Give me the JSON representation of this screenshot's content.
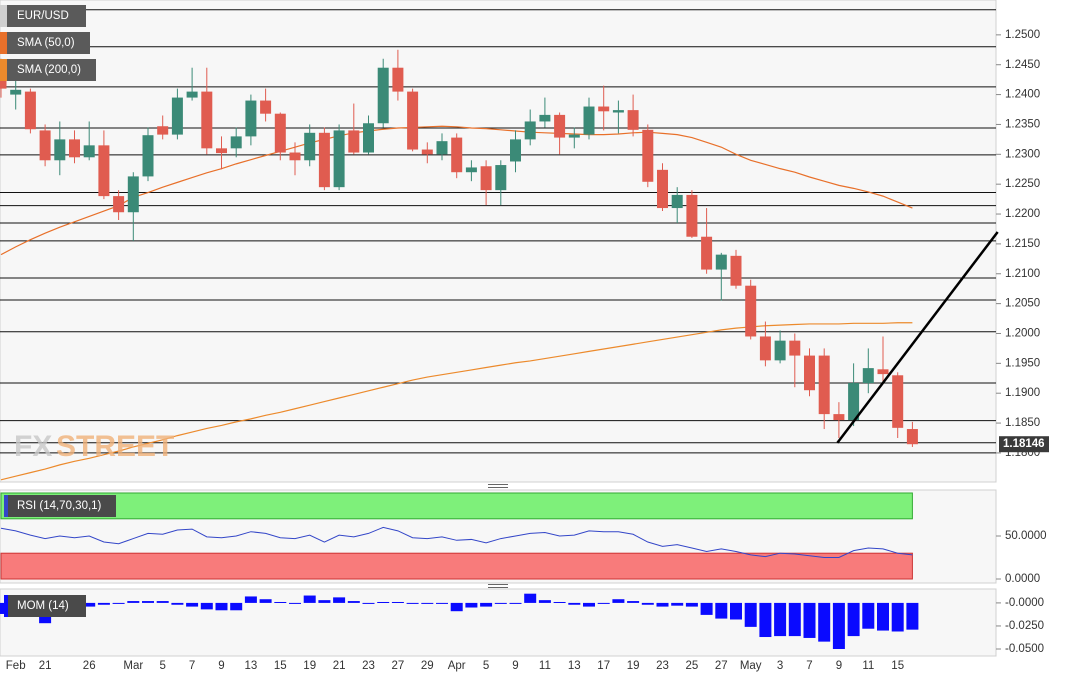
{
  "chart_data": [
    {
      "type": "candlestick",
      "name": "EUR/USD",
      "categories": [
        null,
        "Feb",
        null,
        "21",
        null,
        null,
        "26",
        null,
        null,
        "Mar",
        null,
        "5",
        null,
        "7",
        null,
        "9",
        null,
        "13",
        null,
        "15",
        null,
        "19",
        null,
        "21",
        null,
        "23",
        null,
        "27",
        null,
        "29",
        null,
        "Apr",
        null,
        "5",
        null,
        "9",
        null,
        "11",
        null,
        "13",
        null,
        "17",
        null,
        "19",
        null,
        "23",
        null,
        "25",
        null,
        "27",
        null,
        "May",
        null,
        "3",
        null,
        "7",
        null,
        "9",
        null,
        "11",
        null,
        "15",
        null
      ],
      "open": [
        1.244,
        1.24,
        1.2405,
        1.234,
        1.229,
        1.2325,
        1.2295,
        1.2315,
        1.223,
        1.2203,
        1.2263,
        1.2347,
        1.2333,
        1.2395,
        1.2405,
        1.231,
        1.231,
        1.233,
        1.239,
        1.2368,
        1.2303,
        1.229,
        1.2336,
        1.2245,
        1.234,
        1.2303,
        1.2352,
        1.2445,
        1.2405,
        1.2308,
        1.23,
        1.2328,
        1.227,
        1.228,
        1.224,
        1.2288,
        1.2325,
        1.2355,
        1.2366,
        1.2328,
        1.2333,
        1.238,
        1.237,
        1.2374,
        1.2341,
        1.2274,
        1.221,
        1.2232,
        1.2162,
        1.2107,
        1.213,
        1.208,
        1.1995,
        1.1955,
        1.1988,
        1.1963,
        1.1963,
        1.1865,
        1.1855,
        1.1917,
        1.194,
        1.193,
        1.184
      ],
      "high": [
        1.246,
        1.2425,
        1.241,
        1.235,
        1.2355,
        1.234,
        1.2355,
        1.234,
        1.224,
        1.227,
        1.2345,
        1.2365,
        1.241,
        1.2445,
        1.2445,
        1.233,
        1.2345,
        1.24,
        1.241,
        1.237,
        1.232,
        1.235,
        1.2345,
        1.235,
        1.2385,
        1.2365,
        1.246,
        1.2475,
        1.241,
        1.232,
        1.2335,
        1.2335,
        1.229,
        1.229,
        1.229,
        1.234,
        1.2375,
        1.2395,
        1.237,
        1.2345,
        1.2395,
        1.2415,
        1.239,
        1.24,
        1.235,
        1.2285,
        1.2245,
        1.224,
        1.221,
        1.2135,
        1.214,
        1.209,
        1.202,
        1.2005,
        1.2,
        1.1975,
        1.1975,
        1.1885,
        1.195,
        1.1975,
        1.1995,
        1.1935,
        1.1852
      ],
      "low": [
        1.2395,
        1.2375,
        1.2335,
        1.228,
        1.2265,
        1.2285,
        1.229,
        1.2225,
        1.219,
        1.2155,
        1.2255,
        1.2325,
        1.2325,
        1.239,
        1.23,
        1.2275,
        1.2295,
        1.2315,
        1.2355,
        1.229,
        1.2265,
        1.228,
        1.224,
        1.224,
        1.23,
        1.23,
        1.2345,
        1.239,
        1.2305,
        1.2285,
        1.229,
        1.226,
        1.2255,
        1.2215,
        1.2215,
        1.227,
        1.2315,
        1.2345,
        1.23,
        1.231,
        1.2325,
        1.234,
        1.2335,
        1.233,
        1.2245,
        1.2205,
        1.2185,
        1.216,
        1.21,
        1.2055,
        1.2075,
        1.199,
        1.1945,
        1.195,
        1.191,
        1.1895,
        1.184,
        1.1825,
        1.1845,
        1.19,
        1.1915,
        1.1825,
        1.181
      ],
      "close": [
        1.241,
        1.2408,
        1.2342,
        1.229,
        1.2325,
        1.2295,
        1.2315,
        1.223,
        1.2203,
        1.2263,
        1.2332,
        1.2333,
        1.2395,
        1.2405,
        1.231,
        1.2302,
        1.233,
        1.239,
        1.2368,
        1.2303,
        1.229,
        1.2336,
        1.2245,
        1.234,
        1.2303,
        1.2352,
        1.2445,
        1.2405,
        1.2308,
        1.23,
        1.2322,
        1.227,
        1.2278,
        1.224,
        1.2282,
        1.2325,
        1.2355,
        1.2366,
        1.2328,
        1.2333,
        1.238,
        1.2372,
        1.2374,
        1.2341,
        1.2254,
        1.221,
        1.2232,
        1.2162,
        1.2107,
        1.2132,
        1.208,
        1.1995,
        1.1955,
        1.1988,
        1.1963,
        1.1905,
        1.1865,
        1.1855,
        1.1917,
        1.1942,
        1.1932,
        1.1842,
        1.18146
      ],
      "colors": {
        "up": "#3b8a77",
        "down": "#e05c50"
      },
      "series": [
        {
          "name": "SMA (50,0)",
          "color": "#e8702a",
          "values": [
            1.2132,
            1.2145,
            1.2157,
            1.2168,
            1.2178,
            1.2187,
            1.2196,
            1.2205,
            1.2214,
            1.2228,
            1.2236,
            1.2245,
            1.2253,
            1.2261,
            1.2269,
            1.2276,
            1.2284,
            1.2291,
            1.2298,
            1.2305,
            1.2312,
            1.2319,
            1.2325,
            1.2331,
            1.2336,
            1.2339,
            1.2342,
            1.2344,
            1.2345,
            1.2346,
            1.2347,
            1.2346,
            1.2344,
            1.2343,
            1.2341,
            1.2339,
            1.2337,
            1.2336,
            1.2335,
            1.2334,
            1.2333,
            1.2333,
            1.2334,
            1.2336,
            1.2337,
            1.2335,
            1.2333,
            1.2328,
            1.232,
            1.2312,
            1.23,
            1.229,
            1.2283,
            1.2276,
            1.227,
            1.2262,
            1.2255,
            1.2248,
            1.2243,
            1.2237,
            1.223,
            1.222,
            1.221
          ]
        },
        {
          "name": "SMA (200,0)",
          "color": "#ec8a2c",
          "values": [
            1.1755,
            1.1761,
            1.1767,
            1.1773,
            1.178,
            1.1786,
            1.1791,
            1.1797,
            1.1803,
            1.181,
            1.1816,
            1.1822,
            1.1829,
            1.1835,
            1.1841,
            1.1846,
            1.1852,
            1.1857,
            1.1863,
            1.1868,
            1.1874,
            1.188,
            1.1886,
            1.1892,
            1.1898,
            1.1904,
            1.191,
            1.1916,
            1.1922,
            1.1927,
            1.1931,
            1.1935,
            1.1939,
            1.1943,
            1.1947,
            1.1951,
            1.1954,
            1.1958,
            1.1962,
            1.1966,
            1.197,
            1.1974,
            1.1978,
            1.1982,
            1.1986,
            1.199,
            1.1994,
            1.1998,
            1.2002,
            1.2006,
            1.2009,
            1.2011,
            1.2013,
            1.2014,
            1.2015,
            1.2016,
            1.2016,
            1.2016,
            1.2017,
            1.2017,
            1.2017,
            1.2018,
            1.2018
          ]
        }
      ],
      "ylim": [
        1.1753,
        1.255
      ],
      "yticks": [
        {
          "value": 1.25,
          "label": "1.2500"
        },
        {
          "value": 1.245,
          "label": "1.2450"
        },
        {
          "value": 1.24,
          "label": "1.2400"
        },
        {
          "value": 1.235,
          "label": "1.2350"
        },
        {
          "value": 1.23,
          "label": "1.2300"
        },
        {
          "value": 1.225,
          "label": "1.2250"
        },
        {
          "value": 1.22,
          "label": "1.2200"
        },
        {
          "value": 1.215,
          "label": "1.2150"
        },
        {
          "value": 1.21,
          "label": "1.2100"
        },
        {
          "value": 1.205,
          "label": "1.2050"
        },
        {
          "value": 1.2,
          "label": "1.2000"
        },
        {
          "value": 1.195,
          "label": "1.1950"
        },
        {
          "value": 1.19,
          "label": "1.1900"
        },
        {
          "value": 1.185,
          "label": "1.1850"
        },
        {
          "value": 1.18,
          "label": "1.1800"
        }
      ],
      "levels": [
        1.2542,
        1.248,
        1.2413,
        1.2344,
        1.2299,
        1.2236,
        1.2214,
        1.2185,
        1.2155,
        1.2093,
        1.2056,
        1.2003,
        1.1917,
        1.1854,
        1.1817,
        1.18
      ],
      "trendline": {
        "x": [
          56.9,
          67.8
        ],
        "y": [
          1.1817,
          1.217
        ]
      },
      "last_price": 1.18146,
      "watermark": {
        "fx": "FX",
        "street": "STREET"
      }
    },
    {
      "type": "line",
      "name": "RSI (14,70,30,1)",
      "color": "#3346c8",
      "values": [
        59,
        56,
        51,
        47,
        50,
        48,
        50,
        43,
        41,
        47,
        53,
        52,
        57,
        58,
        49,
        48,
        50,
        55,
        53,
        48,
        47,
        51,
        43,
        51,
        49,
        53,
        60,
        56,
        48,
        47,
        49,
        45,
        46,
        42,
        47,
        50,
        53,
        54,
        50,
        51,
        56,
        55,
        55,
        52,
        43,
        38,
        40,
        36,
        32,
        35,
        32,
        28,
        26,
        30,
        29,
        27,
        25,
        25,
        33,
        36,
        35,
        30,
        28
      ],
      "ylim": [
        0,
        100
      ],
      "yticks": [
        {
          "value": 50,
          "label": "50.0000"
        },
        {
          "value": 0,
          "label": "0.0000"
        }
      ],
      "overbought": 70,
      "oversold": 30,
      "band_colors": {
        "overbought": "#7ef07a",
        "oversold": "#f87b7b"
      }
    },
    {
      "type": "bar",
      "name": "MOM (14)",
      "color": "#0a0aff",
      "values": [
        -0.012,
        -0.005,
        -0.01,
        -0.022,
        -0.008,
        -0.006,
        -0.004,
        -0.002,
        -0.001,
        0.002,
        0.002,
        0.002,
        -0.002,
        -0.004,
        -0.007,
        -0.008,
        -0.008,
        0.007,
        0.004,
        0.001,
        -0.001,
        0.008,
        0.003,
        0.006,
        0.002,
        -0.001,
        0.001,
        0.001,
        0,
        0,
        0,
        -0.009,
        -0.005,
        -0.004,
        -0.001,
        0,
        0.01,
        0.003,
        0.001,
        -0.002,
        -0.004,
        -0.001,
        0.004,
        0.002,
        -0.002,
        -0.004,
        -0.003,
        -0.004,
        -0.013,
        -0.017,
        -0.018,
        -0.026,
        -0.037,
        -0.036,
        -0.036,
        -0.038,
        -0.042,
        -0.05,
        -0.036,
        -0.028,
        -0.03,
        -0.031,
        -0.029
      ],
      "ylim": [
        -0.0565,
        0.014
      ],
      "yticks": [
        {
          "value": 0,
          "label": "-0.0000"
        },
        {
          "value": -0.025,
          "label": "-0.0250"
        },
        {
          "value": -0.05,
          "label": "-0.0500"
        }
      ]
    }
  ]
}
